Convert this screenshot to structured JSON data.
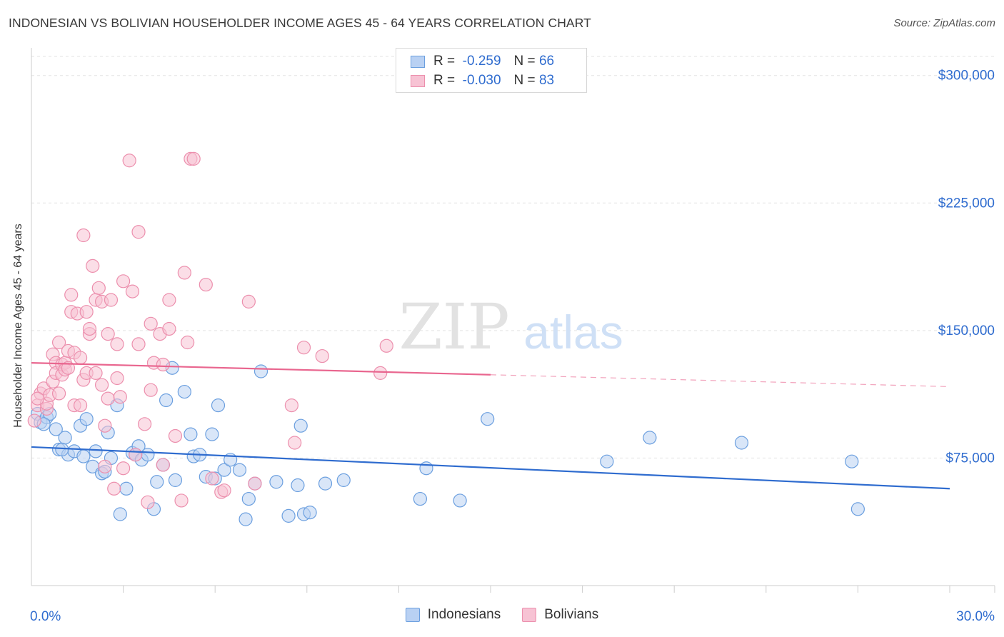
{
  "title": "INDONESIAN VS BOLIVIAN HOUSEHOLDER INCOME AGES 45 - 64 YEARS CORRELATION CHART",
  "source": "Source: ZipAtlas.com",
  "watermark": {
    "zip": "ZIP",
    "atlas": "atlas"
  },
  "stats": [
    {
      "r_label": "R =",
      "r_value": "-0.259",
      "n_label": "N =",
      "n_value": "66"
    },
    {
      "r_label": "R =",
      "r_value": "-0.030",
      "n_label": "N =",
      "n_value": "83"
    }
  ],
  "chart_data": {
    "type": "scatter",
    "xlabel": "",
    "ylabel": "Householder Income Ages 45 - 64 years",
    "xlim": [
      0,
      30
    ],
    "ylim": [
      0,
      315000
    ],
    "x_tick_labels": [
      {
        "value": 0,
        "label": "0.0%"
      },
      {
        "value": 30,
        "label": "30.0%"
      }
    ],
    "x_minor_ticks": [
      3,
      6,
      9,
      12,
      15,
      18,
      21,
      24,
      27,
      30
    ],
    "y_ticks": [
      {
        "value": 75000,
        "label": "$75,000"
      },
      {
        "value": 150000,
        "label": "$150,000"
      },
      {
        "value": 225000,
        "label": "$225,000"
      },
      {
        "value": 300000,
        "label": "$300,000"
      }
    ],
    "grid": true,
    "legend_position": "bottom-center",
    "series": [
      {
        "name": "Indonesians",
        "color": "#6b9fdf",
        "fill": "#b9d1f3",
        "trend": {
          "x": [
            0,
            30
          ],
          "y": [
            81500,
            57000
          ],
          "solid_to": 30,
          "color": "#2f6ccf"
        },
        "points": [
          [
            0.2,
            101000
          ],
          [
            0.3,
            96000
          ],
          [
            0.5,
            99000
          ],
          [
            0.6,
            101000
          ],
          [
            0.8,
            92000
          ],
          [
            0.9,
            80000
          ],
          [
            1.1,
            87000
          ],
          [
            1.2,
            77000
          ],
          [
            1.4,
            79000
          ],
          [
            1.6,
            94000
          ],
          [
            1.7,
            76000
          ],
          [
            1.8,
            98000
          ],
          [
            2.0,
            70000
          ],
          [
            2.1,
            79000
          ],
          [
            2.3,
            66000
          ],
          [
            2.4,
            67000
          ],
          [
            2.5,
            90000
          ],
          [
            2.6,
            75000
          ],
          [
            2.8,
            106000
          ],
          [
            2.9,
            42000
          ],
          [
            3.1,
            57000
          ],
          [
            3.3,
            78000
          ],
          [
            3.4,
            77000
          ],
          [
            3.5,
            82000
          ],
          [
            3.6,
            74000
          ],
          [
            3.8,
            77000
          ],
          [
            4.0,
            45000
          ],
          [
            4.1,
            61000
          ],
          [
            4.3,
            71000
          ],
          [
            4.4,
            109000
          ],
          [
            4.6,
            128000
          ],
          [
            4.7,
            62000
          ],
          [
            5.0,
            114000
          ],
          [
            5.2,
            89000
          ],
          [
            5.3,
            76000
          ],
          [
            5.5,
            77000
          ],
          [
            5.7,
            64000
          ],
          [
            5.9,
            89000
          ],
          [
            6.0,
            63000
          ],
          [
            6.1,
            106000
          ],
          [
            6.3,
            68000
          ],
          [
            6.5,
            74000
          ],
          [
            6.8,
            68000
          ],
          [
            7.0,
            39000
          ],
          [
            7.1,
            51000
          ],
          [
            7.3,
            60000
          ],
          [
            7.5,
            126000
          ],
          [
            8.0,
            61000
          ],
          [
            8.4,
            41000
          ],
          [
            8.7,
            59000
          ],
          [
            8.8,
            94000
          ],
          [
            8.9,
            42000
          ],
          [
            9.1,
            43000
          ],
          [
            9.6,
            60000
          ],
          [
            10.2,
            62000
          ],
          [
            12.7,
            51000
          ],
          [
            12.9,
            69000
          ],
          [
            14.0,
            50000
          ],
          [
            14.9,
            98000
          ],
          [
            18.8,
            73000
          ],
          [
            20.2,
            87000
          ],
          [
            23.2,
            84000
          ],
          [
            26.8,
            73000
          ],
          [
            27.0,
            45000
          ],
          [
            0.4,
            95000
          ],
          [
            1.0,
            80000
          ]
        ]
      },
      {
        "name": "Bolivians",
        "color": "#ec8fad",
        "fill": "#f7c3d4",
        "trend": {
          "x": [
            0,
            30
          ],
          "y": [
            131000,
            117000
          ],
          "solid_to": 15,
          "color": "#e9668f"
        },
        "points": [
          [
            0.1,
            97000
          ],
          [
            0.2,
            106000
          ],
          [
            0.3,
            113000
          ],
          [
            0.4,
            116000
          ],
          [
            0.5,
            104000
          ],
          [
            0.5,
            107000
          ],
          [
            0.6,
            112000
          ],
          [
            0.7,
            120000
          ],
          [
            0.7,
            136000
          ],
          [
            0.8,
            131000
          ],
          [
            0.8,
            125000
          ],
          [
            0.9,
            143000
          ],
          [
            0.9,
            113000
          ],
          [
            1.0,
            124000
          ],
          [
            1.0,
            130000
          ],
          [
            1.1,
            131000
          ],
          [
            1.1,
            127000
          ],
          [
            1.2,
            128000
          ],
          [
            1.2,
            138000
          ],
          [
            1.3,
            171000
          ],
          [
            1.3,
            161000
          ],
          [
            1.4,
            106000
          ],
          [
            1.4,
            137000
          ],
          [
            1.5,
            160000
          ],
          [
            1.6,
            134000
          ],
          [
            1.6,
            106000
          ],
          [
            1.7,
            206000
          ],
          [
            1.7,
            121000
          ],
          [
            1.8,
            125000
          ],
          [
            1.8,
            161000
          ],
          [
            1.9,
            148000
          ],
          [
            1.9,
            151000
          ],
          [
            2.0,
            188000
          ],
          [
            2.1,
            125000
          ],
          [
            2.1,
            168000
          ],
          [
            2.2,
            175000
          ],
          [
            2.3,
            118000
          ],
          [
            2.3,
            167000
          ],
          [
            2.4,
            94000
          ],
          [
            2.4,
            70000
          ],
          [
            2.5,
            148000
          ],
          [
            2.5,
            110000
          ],
          [
            2.6,
            168000
          ],
          [
            2.7,
            57000
          ],
          [
            2.8,
            142000
          ],
          [
            2.8,
            122000
          ],
          [
            2.9,
            111000
          ],
          [
            3.0,
            69000
          ],
          [
            3.0,
            179000
          ],
          [
            3.2,
            250000
          ],
          [
            3.3,
            173000
          ],
          [
            3.4,
            77000
          ],
          [
            3.5,
            208000
          ],
          [
            3.5,
            142000
          ],
          [
            3.7,
            95000
          ],
          [
            3.8,
            49000
          ],
          [
            3.9,
            115000
          ],
          [
            3.9,
            154000
          ],
          [
            4.0,
            131000
          ],
          [
            4.2,
            148000
          ],
          [
            4.3,
            71000
          ],
          [
            4.3,
            130000
          ],
          [
            4.5,
            151000
          ],
          [
            4.5,
            168000
          ],
          [
            4.7,
            88000
          ],
          [
            4.9,
            50000
          ],
          [
            5.0,
            184000
          ],
          [
            5.1,
            143000
          ],
          [
            5.2,
            251000
          ],
          [
            5.3,
            251000
          ],
          [
            5.7,
            177000
          ],
          [
            5.9,
            63000
          ],
          [
            6.2,
            55000
          ],
          [
            6.3,
            56000
          ],
          [
            7.1,
            167000
          ],
          [
            7.3,
            60000
          ],
          [
            8.5,
            106000
          ],
          [
            8.6,
            84000
          ],
          [
            8.9,
            140000
          ],
          [
            9.5,
            135000
          ],
          [
            11.4,
            125000
          ],
          [
            11.6,
            141000
          ],
          [
            0.2,
            110000
          ]
        ]
      }
    ]
  }
}
